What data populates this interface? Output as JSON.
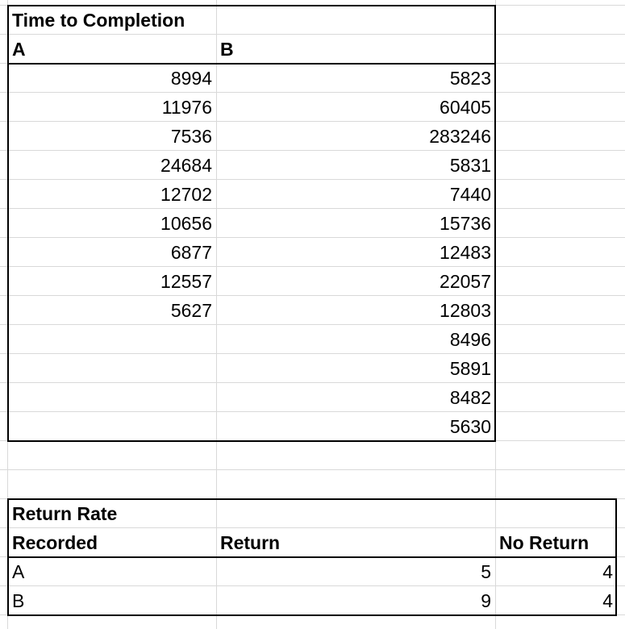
{
  "table1": {
    "title": "Time to Completion",
    "col_a": "A",
    "col_b": "B",
    "a_values": [
      "8994",
      "11976",
      "7536",
      "24684",
      "12702",
      "10656",
      "6877",
      "12557",
      "5627"
    ],
    "b_values": [
      "5823",
      "60405",
      "283246",
      "5831",
      "7440",
      "15736",
      "12483",
      "22057",
      "12803",
      "8496",
      "5891",
      "8482",
      "5630"
    ]
  },
  "table2": {
    "title": "Return Rate",
    "header_recorded": "Recorded",
    "header_return": "Return",
    "header_no_return": "No Return",
    "rows": [
      {
        "label": "A",
        "return": "5",
        "no_return": "4"
      },
      {
        "label": "B",
        "return": "9",
        "no_return": "4"
      }
    ]
  }
}
